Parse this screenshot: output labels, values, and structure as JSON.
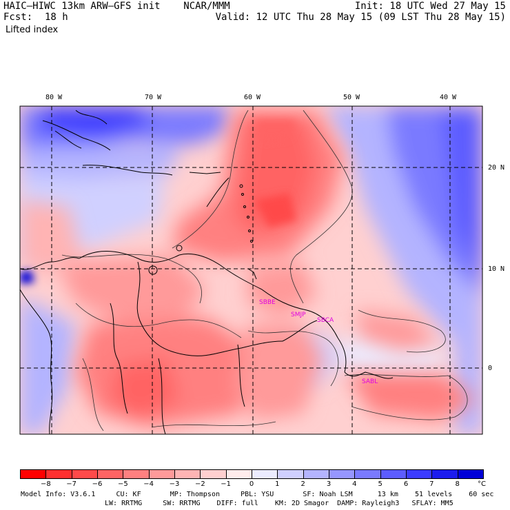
{
  "header": {
    "model_line": "HAIC–HIWC 13km ARW–GFS init    NCAR/MMM",
    "fcst_label": "Fcst:",
    "fcst_value": "18 h",
    "field_name": "Lifted index",
    "init_line": "Init: 18 UTC Wed 27 May 15",
    "valid_line": "Valid: 12 UTC Thu 28 May 15 (09 LST Thu 28 May 15)"
  },
  "map": {
    "lon_labels": [
      "80 W",
      "70 W",
      "60 W",
      "50 W",
      "40 W"
    ],
    "lat_labels": [
      "20 N",
      "10 N",
      "0"
    ],
    "stations": [
      "SABL",
      "SMJP",
      "SBCA",
      "SBBE"
    ],
    "station_color": "#e000e0"
  },
  "colorbar": {
    "unit": "°C",
    "labels": [
      "−8",
      "−7",
      "−6",
      "−5",
      "−4",
      "−3",
      "−2",
      "−1",
      "0",
      "1",
      "2",
      "3",
      "4",
      "5",
      "6",
      "7",
      "8"
    ],
    "colors": [
      "#ff0000",
      "#ff3030",
      "#ff4a4a",
      "#ff6464",
      "#ff8080",
      "#ff9a9a",
      "#ffb4b4",
      "#ffd0d0",
      "#ffecec",
      "#ececff",
      "#d0d0ff",
      "#b4b4ff",
      "#9696ff",
      "#7a7aff",
      "#5c5cff",
      "#3c3cff",
      "#1c1cee",
      "#0000d8"
    ]
  },
  "footer": {
    "line1": "Model Info: V3.6.1     CU: KF       MP: Thompson     PBL: YSU       SF: Noah LSM      13 km    51 levels    60 sec",
    "line2": "LW: RRTMG     SW: RRTMG    DIFF: full    KM: 2D Smagor  DAMP: Rayleigh3   SFLAY: MM5"
  }
}
